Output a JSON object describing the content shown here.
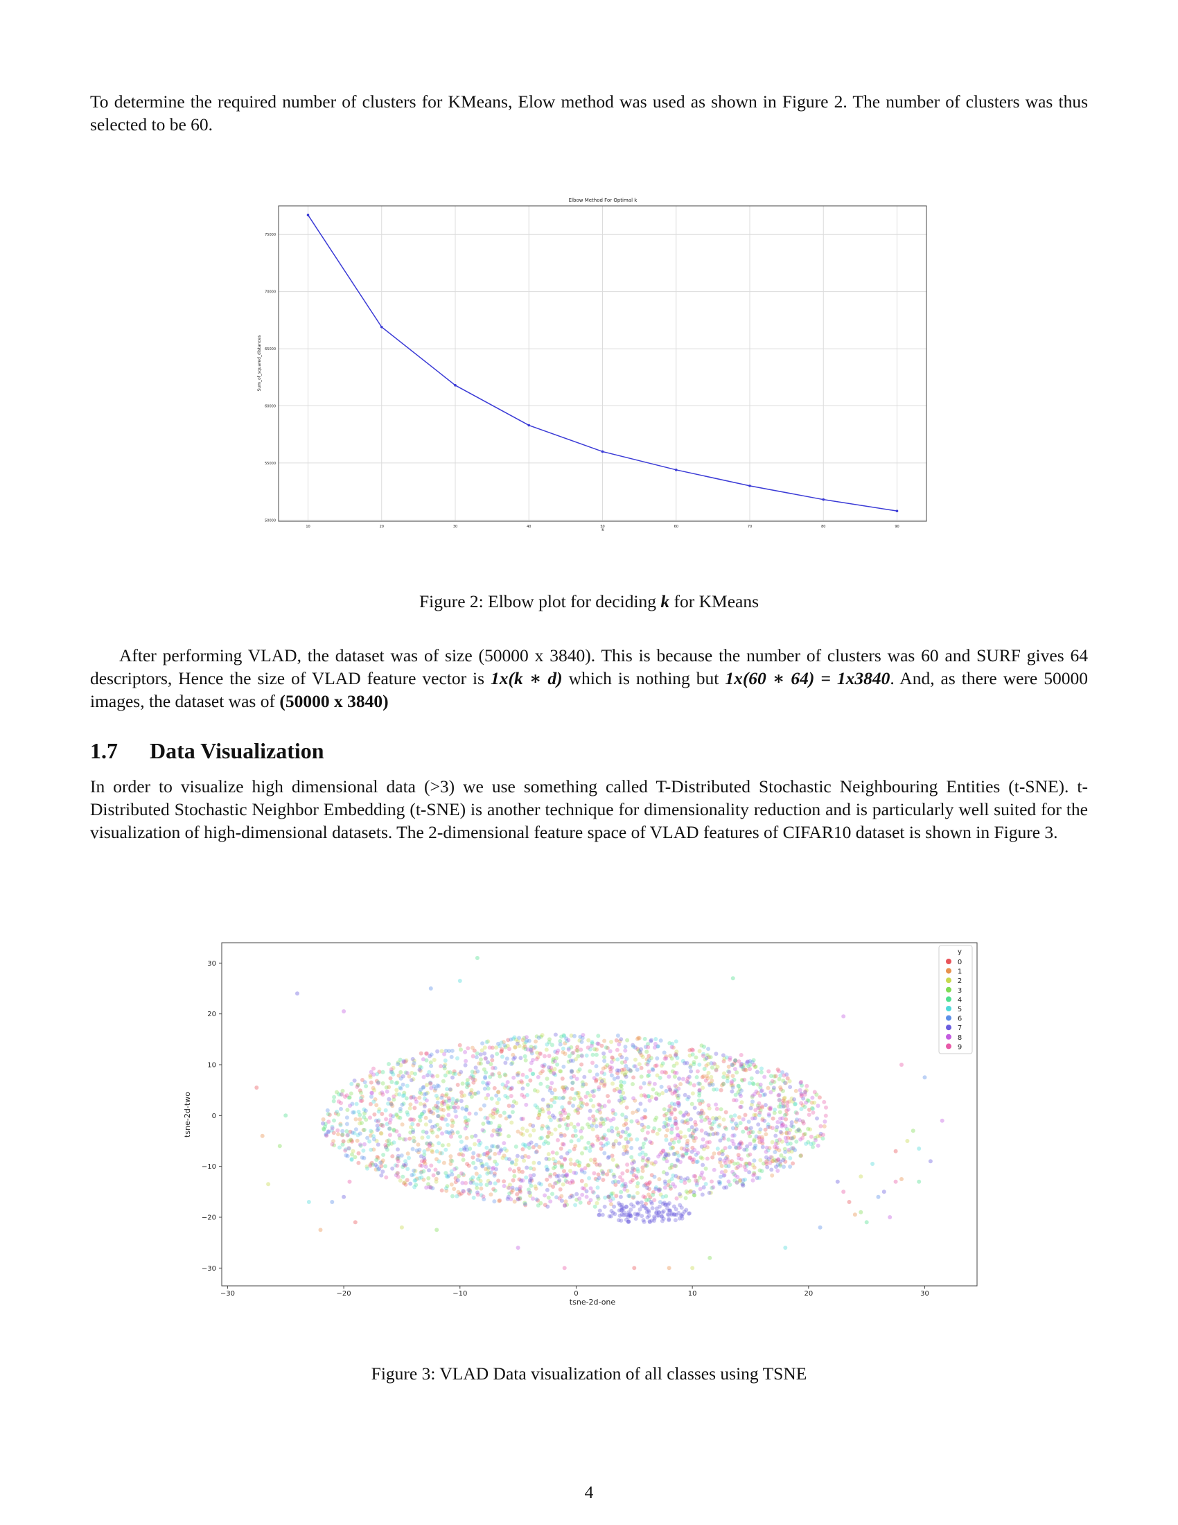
{
  "intro_paragraph": "To determine the required number of clusters for KMeans, Elow method was used as shown in Figure 2. The number of clusters was thus selected to be 60.",
  "figure2": {
    "caption_prefix": "Figure 2: Elbow plot for deciding ",
    "caption_k": "k",
    "caption_suffix": " for KMeans"
  },
  "vlad_paragraph": {
    "part1": "After performing VLAD, the dataset was of size (50000 x 3840). This is because the number of clusters was 60 and SURF gives 64 descriptors, Hence the size of VLAD feature vector is ",
    "expr1": "1x(k ∗ d)",
    "part2": " which is nothing but ",
    "expr2": "1x(60 ∗ 64) = 1x3840",
    "part3": ". And, as there were 50000 images, the dataset was of ",
    "expr3": "(50000 x 3840)"
  },
  "section": {
    "number": "1.7",
    "title": "Data Visualization"
  },
  "tsne_paragraph": "In order to visualize high dimensional data (>3) we use something called T-Distributed Stochastic Neighbouring Entities (t-SNE). t-Distributed Stochastic Neighbor Embedding (t-SNE) is another technique for dimensionality reduction and is particularly well suited for the visualization of high-dimensional datasets. The 2-dimensional feature space of VLAD features of CIFAR10 dataset is shown in Figure 3.",
  "figure3": {
    "caption": "Figure 3: VLAD Data visualization of all classes using TSNE"
  },
  "page_number": "4",
  "chart_data": [
    {
      "type": "line",
      "title": "Elbow Method For Optimal k",
      "xlabel": "k",
      "ylabel": "Sum_of_squared_distances",
      "x": [
        10,
        20,
        30,
        40,
        50,
        60,
        70,
        80,
        90
      ],
      "series": [
        {
          "values": [
            76700,
            66900,
            61800,
            58300,
            56000,
            54400,
            53000,
            51800,
            50800
          ]
        }
      ],
      "xlim": [
        6,
        94
      ],
      "ylim": [
        49900,
        77500
      ],
      "xticks": [
        "10",
        "20",
        "30",
        "40",
        "50",
        "60",
        "70",
        "80",
        "90"
      ],
      "yticks": [
        "50000",
        "55000",
        "60000",
        "65000",
        "70000",
        "75000"
      ],
      "grid": true,
      "color": "#3b3bd6"
    },
    {
      "type": "scatter",
      "xlabel": "tsne-2d-one",
      "ylabel": "tsne-2d-two",
      "xlim": [
        -30.5,
        34.5
      ],
      "ylim": [
        -33.5,
        34
      ],
      "xticks": [
        "−30",
        "−20",
        "−10",
        "0",
        "10",
        "20",
        "30"
      ],
      "yticks": [
        "−30",
        "−20",
        "−10",
        "0",
        "10",
        "20",
        "30"
      ],
      "grid": false,
      "legend_title": "y",
      "legend_position": "top-right",
      "classes": [
        "0",
        "1",
        "2",
        "3",
        "4",
        "5",
        "6",
        "7",
        "8",
        "9"
      ],
      "colors": [
        "#e8545a",
        "#e8924e",
        "#c8d94e",
        "#7fdc54",
        "#4fdf8f",
        "#4fd9d9",
        "#5b8ee8",
        "#6a5cde",
        "#c45ce0",
        "#e85aa8"
      ],
      "cloud": {
        "center": [
          0,
          -1
        ],
        "radius_x": 23,
        "radius_y": 23,
        "points_per_class": 260
      },
      "outliers": [
        [
          -27.5,
          5.5
        ],
        [
          -27,
          -4
        ],
        [
          -26.5,
          -13.5
        ],
        [
          -25.5,
          -6
        ],
        [
          -25,
          0
        ],
        [
          -23,
          -17
        ],
        [
          -21,
          -17
        ],
        [
          -20,
          -16
        ],
        [
          -20,
          20.5
        ],
        [
          -19.5,
          -13
        ],
        [
          -19,
          -21
        ],
        [
          -22,
          -22.5
        ],
        [
          -15,
          -22
        ],
        [
          -12,
          -22.5
        ],
        [
          -8.5,
          31
        ],
        [
          -10,
          26.5
        ],
        [
          -12.5,
          25
        ],
        [
          -24,
          24
        ],
        [
          -5,
          -26
        ],
        [
          -1,
          -30
        ],
        [
          5,
          -30
        ],
        [
          8,
          -30
        ],
        [
          10,
          -30
        ],
        [
          11.5,
          -28
        ],
        [
          13.5,
          27
        ],
        [
          18,
          -26
        ],
        [
          21,
          -22
        ],
        [
          22.5,
          -13
        ],
        [
          23,
          19.5
        ],
        [
          23,
          -15
        ],
        [
          23.5,
          -17
        ],
        [
          24,
          -19.5
        ],
        [
          24.5,
          -12
        ],
        [
          24.5,
          -19
        ],
        [
          25,
          -21
        ],
        [
          25.5,
          -9.5
        ],
        [
          26,
          -16
        ],
        [
          26.5,
          -15
        ],
        [
          27,
          -20
        ],
        [
          27.5,
          -13
        ],
        [
          27.5,
          -7
        ],
        [
          28,
          -12.5
        ],
        [
          28.5,
          -5
        ],
        [
          29,
          -3
        ],
        [
          29.5,
          -13
        ],
        [
          29.5,
          -6.5
        ],
        [
          30,
          7.5
        ],
        [
          30.5,
          -9
        ],
        [
          31.5,
          -1
        ],
        [
          28,
          10
        ]
      ],
      "dense_patch": {
        "center": [
          6,
          -19
        ],
        "radius": 3,
        "class_index": 7
      }
    }
  ]
}
